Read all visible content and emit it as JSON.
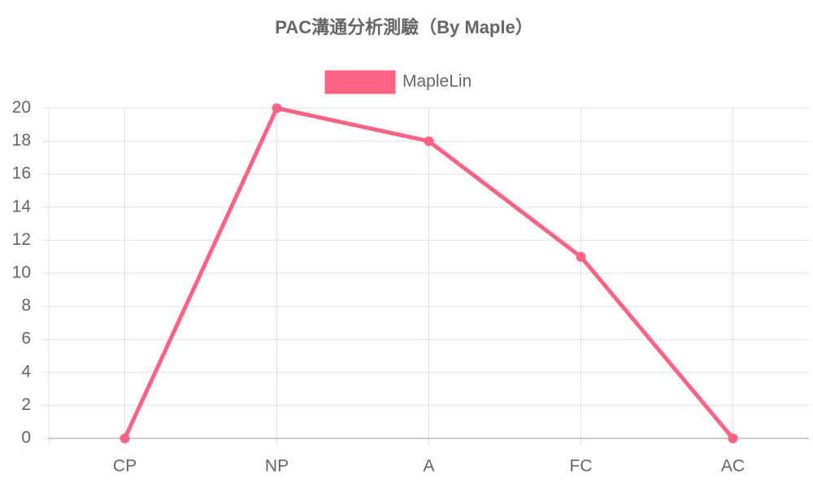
{
  "chart_data": {
    "type": "line",
    "title": "PAC溝通分析測驗（By Maple）",
    "categories": [
      "CP",
      "NP",
      "A",
      "FC",
      "AC"
    ],
    "series": [
      {
        "name": "MapleLin",
        "color": "#ff6384",
        "values": [
          0,
          20,
          18,
          11,
          0
        ]
      }
    ],
    "ylim": [
      0,
      20
    ],
    "yticks": [
      0,
      2,
      4,
      6,
      8,
      10,
      12,
      14,
      16,
      18,
      20
    ],
    "grid": true
  }
}
